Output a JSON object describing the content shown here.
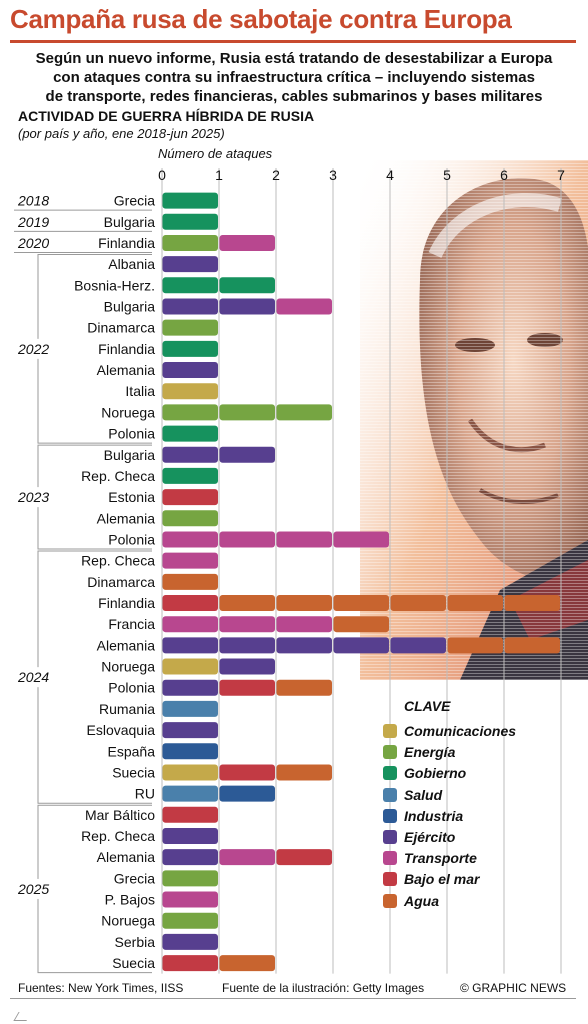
{
  "title": "Campaña rusa de sabotaje contra Europa",
  "intro": [
    "Según un nuevo informe, Rusia está tratando de desestabilizar a Europa",
    "con ataques contra su infraestructura crítica – incluyendo sistemas",
    "de transporte, redes financieras, cables submarinos y bases militares"
  ],
  "footer": {
    "sources": "Fuentes: New York Times, IISS",
    "illustration": "Fuente de la ilustración: Getty Images",
    "credit": "© GRAPHIC NEWS"
  },
  "chart_data": {
    "type": "bar",
    "orientation": "horizontal",
    "stacked": true,
    "title": "ACTIVIDAD DE GUERRA HÍBRIDA DE RUSIA",
    "subtitle": "(por país y año, ene 2018-jun 2025)",
    "xlabel": "Número de ataques",
    "xlim": [
      0,
      7
    ],
    "x_ticks": [
      "0",
      "1",
      "2",
      "3",
      "4",
      "5",
      "6",
      "7"
    ],
    "grid": true,
    "legend_title": "CLAVE",
    "legend_position": "bottom-right",
    "categories_key": [
      {
        "name": "Comunicaciones",
        "color": "#c4a94a"
      },
      {
        "name": "Energía",
        "color": "#76a542"
      },
      {
        "name": "Gobierno",
        "color": "#16925e"
      },
      {
        "name": "Salud",
        "color": "#4a80ab"
      },
      {
        "name": "Industria",
        "color": "#2c5a96"
      },
      {
        "name": "Ejército",
        "color": "#573f8f"
      },
      {
        "name": "Transporte",
        "color": "#b8478f"
      },
      {
        "name": "Bajo el mar",
        "color": "#c23a44"
      },
      {
        "name": "Agua",
        "color": "#c8642f"
      }
    ],
    "groups": [
      {
        "year": "2018",
        "rows": [
          {
            "country": "Grecia",
            "attacks": [
              "Gobierno"
            ]
          }
        ]
      },
      {
        "year": "2019",
        "rows": [
          {
            "country": "Bulgaria",
            "attacks": [
              "Gobierno"
            ]
          }
        ]
      },
      {
        "year": "2020",
        "rows": [
          {
            "country": "Finlandia",
            "attacks": [
              "Energía",
              "Transporte"
            ]
          }
        ]
      },
      {
        "year": "2022",
        "rows": [
          {
            "country": "Albania",
            "attacks": [
              "Ejército"
            ]
          },
          {
            "country": "Bosnia-Herz.",
            "attacks": [
              "Gobierno",
              "Gobierno"
            ]
          },
          {
            "country": "Bulgaria",
            "attacks": [
              "Ejército",
              "Ejército",
              "Transporte"
            ]
          },
          {
            "country": "Dinamarca",
            "attacks": [
              "Energía"
            ]
          },
          {
            "country": "Finlandia",
            "attacks": [
              "Gobierno"
            ]
          },
          {
            "country": "Alemania",
            "attacks": [
              "Ejército"
            ]
          },
          {
            "country": "Italia",
            "attacks": [
              "Comunicaciones"
            ]
          },
          {
            "country": "Noruega",
            "attacks": [
              "Energía",
              "Energía",
              "Energía"
            ]
          },
          {
            "country": "Polonia",
            "attacks": [
              "Gobierno"
            ]
          }
        ]
      },
      {
        "year": "2023",
        "rows": [
          {
            "country": "Bulgaria",
            "attacks": [
              "Ejército",
              "Ejército"
            ]
          },
          {
            "country": "Rep. Checa",
            "attacks": [
              "Gobierno"
            ]
          },
          {
            "country": "Estonia",
            "attacks": [
              "Bajo el mar"
            ]
          },
          {
            "country": "Alemania",
            "attacks": [
              "Energía"
            ]
          },
          {
            "country": "Polonia",
            "attacks": [
              "Transporte",
              "Transporte",
              "Transporte",
              "Transporte"
            ]
          }
        ]
      },
      {
        "year": "2024",
        "rows": [
          {
            "country": "Rep. Checa",
            "attacks": [
              "Transporte"
            ]
          },
          {
            "country": "Dinamarca",
            "attacks": [
              "Agua"
            ]
          },
          {
            "country": "Finlandia",
            "attacks": [
              "Bajo el mar",
              "Agua",
              "Agua",
              "Agua",
              "Agua",
              "Agua",
              "Agua"
            ]
          },
          {
            "country": "Francia",
            "attacks": [
              "Transporte",
              "Transporte",
              "Transporte",
              "Agua"
            ]
          },
          {
            "country": "Alemania",
            "attacks": [
              "Ejército",
              "Ejército",
              "Ejército",
              "Ejército",
              "Ejército",
              "Agua",
              "Agua"
            ]
          },
          {
            "country": "Noruega",
            "attacks": [
              "Comunicaciones",
              "Ejército"
            ]
          },
          {
            "country": "Polonia",
            "attacks": [
              "Ejército",
              "Bajo el mar",
              "Agua"
            ]
          },
          {
            "country": "Rumania",
            "attacks": [
              "Salud"
            ]
          },
          {
            "country": "Eslovaquia",
            "attacks": [
              "Ejército"
            ]
          },
          {
            "country": "España",
            "attacks": [
              "Industria"
            ]
          },
          {
            "country": "Suecia",
            "attacks": [
              "Comunicaciones",
              "Bajo el mar",
              "Agua"
            ]
          },
          {
            "country": "RU",
            "attacks": [
              "Salud",
              "Industria"
            ]
          }
        ]
      },
      {
        "year": "2025",
        "rows": [
          {
            "country": "Mar Báltico",
            "attacks": [
              "Bajo el mar"
            ]
          },
          {
            "country": "Rep. Checa",
            "attacks": [
              "Ejército"
            ]
          },
          {
            "country": "Alemania",
            "attacks": [
              "Ejército",
              "Transporte",
              "Bajo el mar"
            ]
          },
          {
            "country": "Grecia",
            "attacks": [
              "Energía"
            ]
          },
          {
            "country": "P. Bajos",
            "attacks": [
              "Transporte"
            ]
          },
          {
            "country": "Noruega",
            "attacks": [
              "Energía"
            ]
          },
          {
            "country": "Serbia",
            "attacks": [
              "Ejército"
            ]
          },
          {
            "country": "Suecia",
            "attacks": [
              "Bajo el mar",
              "Agua"
            ]
          }
        ]
      }
    ]
  }
}
